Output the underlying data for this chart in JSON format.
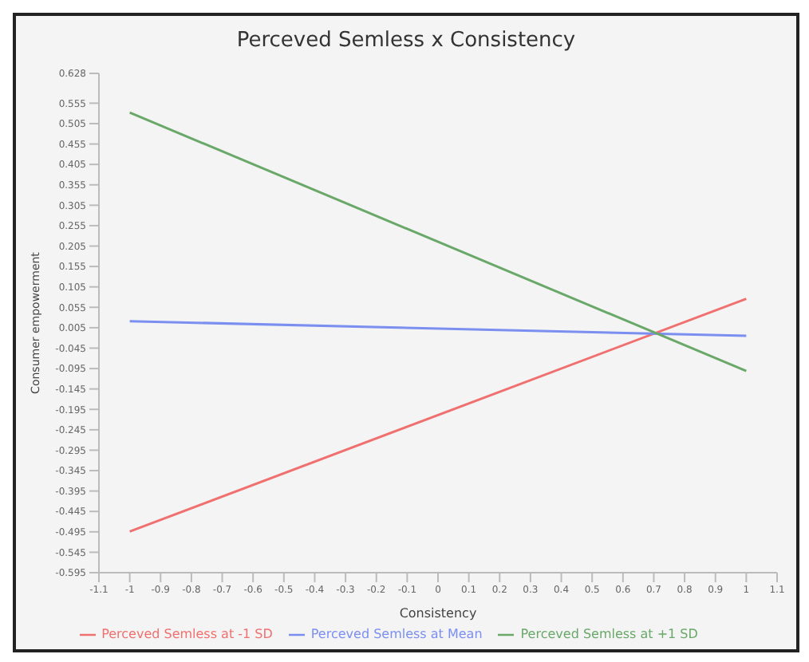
{
  "chart_data": {
    "type": "line",
    "title": "Perceved Semless x Consistency",
    "xlabel": "Consistency",
    "ylabel": "Consumer empowerment",
    "x": [
      -1,
      1
    ],
    "series": [
      {
        "name": "Perceved Semless at -1 SD",
        "color": "#f07070",
        "values": [
          -0.494,
          0.076
        ]
      },
      {
        "name": "Perceved Semless at Mean",
        "color": "#7b8ff0",
        "values": [
          0.021,
          -0.015
        ]
      },
      {
        "name": "Perceved Semless at +1 SD",
        "color": "#6aa86a",
        "values": [
          0.532,
          -0.101
        ]
      }
    ],
    "xlim": [
      -1.1,
      1.1
    ],
    "xticks": [
      -1.1,
      -1,
      -0.9,
      -0.8,
      -0.7,
      -0.6,
      -0.5,
      -0.4,
      -0.3,
      -0.2,
      -0.1,
      0,
      0.1,
      0.2,
      0.3,
      0.4,
      0.5,
      0.6,
      0.7,
      0.8,
      0.9,
      1,
      1.1
    ],
    "ylim": [
      -0.595,
      0.628
    ],
    "yticks": [
      -0.595,
      -0.545,
      -0.495,
      -0.445,
      -0.395,
      -0.345,
      -0.295,
      -0.245,
      -0.195,
      -0.145,
      -0.095,
      -0.045,
      0.005,
      0.055,
      0.105,
      0.155,
      0.205,
      0.255,
      0.305,
      0.355,
      0.405,
      0.455,
      0.505,
      0.555,
      0.628
    ],
    "grid": false,
    "legend": "bottom",
    "marker": "none",
    "line_style": "solid"
  }
}
